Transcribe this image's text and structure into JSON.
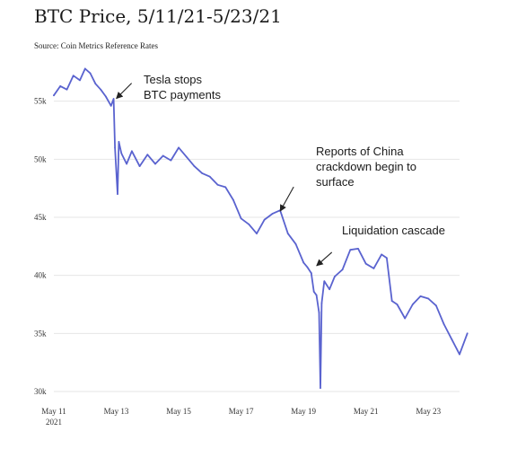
{
  "chart_data": {
    "type": "line",
    "title": "BTC Price, 5/11/21-5/23/21",
    "subtitle": "Source: Coin Metrics Reference Rates",
    "xlabel": "",
    "ylabel": "",
    "x_tick_labels": [
      "May 11",
      "May 13",
      "May 15",
      "May 17",
      "May 19",
      "May 21",
      "May 23"
    ],
    "x_tick_year": "2021",
    "y_tick_labels": [
      "30k",
      "35k",
      "40k",
      "45k",
      "50k",
      "55k"
    ],
    "y_tick_values": [
      30000,
      35000,
      40000,
      45000,
      50000,
      55000
    ],
    "xlim": [
      "2021-05-11",
      "2021-05-24"
    ],
    "ylim": [
      30000,
      60000
    ],
    "grid": "horizontal",
    "color": "#5a63cf",
    "series": [
      {
        "x": [
          "2021-05-11 00:00",
          "2021-05-11 05:00",
          "2021-05-11 10:00",
          "2021-05-11 15:00",
          "2021-05-11 20:00",
          "2021-05-12 00:00",
          "2021-05-12 04:00",
          "2021-05-12 08:00",
          "2021-05-12 12:00",
          "2021-05-12 16:00",
          "2021-05-12 20:00",
          "2021-05-12 22:00",
          "2021-05-12 23:00",
          "2021-05-13 01:00",
          "2021-05-13 02:00",
          "2021-05-13 04:00",
          "2021-05-13 08:00",
          "2021-05-13 12:00",
          "2021-05-13 18:00",
          "2021-05-14 00:00",
          "2021-05-14 06:00",
          "2021-05-14 12:00",
          "2021-05-14 18:00",
          "2021-05-15 00:00",
          "2021-05-15 06:00",
          "2021-05-15 12:00",
          "2021-05-15 18:00",
          "2021-05-16 00:00",
          "2021-05-16 06:00",
          "2021-05-16 12:00",
          "2021-05-16 18:00",
          "2021-05-17 00:00",
          "2021-05-17 06:00",
          "2021-05-17 12:00",
          "2021-05-17 18:00",
          "2021-05-18 00:00",
          "2021-05-18 06:00",
          "2021-05-18 12:00",
          "2021-05-18 18:00",
          "2021-05-19 00:00",
          "2021-05-19 03:00",
          "2021-05-19 06:00",
          "2021-05-19 08:00",
          "2021-05-19 10:00",
          "2021-05-19 12:00",
          "2021-05-19 13:00",
          "2021-05-19 14:00",
          "2021-05-19 16:00",
          "2021-05-19 20:00",
          "2021-05-20 00:00",
          "2021-05-20 06:00",
          "2021-05-20 12:00",
          "2021-05-20 18:00",
          "2021-05-21 00:00",
          "2021-05-21 06:00",
          "2021-05-21 12:00",
          "2021-05-21 16:00",
          "2021-05-21 20:00",
          "2021-05-22 00:00",
          "2021-05-22 06:00",
          "2021-05-22 12:00",
          "2021-05-22 18:00",
          "2021-05-23 00:00",
          "2021-05-23 06:00",
          "2021-05-23 12:00",
          "2021-05-23 18:00",
          "2021-05-24 00:00",
          "2021-05-24 06:00"
        ],
        "values": [
          55500,
          56300,
          56000,
          57200,
          56800,
          57800,
          57400,
          56500,
          56000,
          55400,
          54600,
          55200,
          51000,
          47000,
          51500,
          50500,
          49600,
          50700,
          49400,
          50400,
          49600,
          50300,
          49900,
          51000,
          50200,
          49400,
          48800,
          48500,
          47800,
          47600,
          46500,
          44900,
          44400,
          43600,
          44800,
          45300,
          45600,
          43600,
          42700,
          41100,
          40700,
          40200,
          38600,
          38300,
          36800,
          30300,
          37600,
          39500,
          38800,
          39900,
          40500,
          42200,
          42300,
          41000,
          40600,
          41800,
          41500,
          37800,
          37500,
          36300,
          37500,
          38200,
          38000,
          37400,
          35800,
          34500,
          33200,
          35000
        ]
      }
    ],
    "annotations": [
      {
        "lines": [
          "Tesla stops",
          "BTC payments"
        ],
        "point_x": "2021-05-12 22:00",
        "point_y": 55000
      },
      {
        "lines": [
          "Reports of China",
          "crackdown begin to",
          "surface"
        ],
        "point_x": "2021-05-18 04:00",
        "point_y": 45300
      },
      {
        "lines": [
          "Liquidation cascade"
        ],
        "point_x": "2021-05-19 08:00",
        "point_y": 40600
      }
    ]
  }
}
